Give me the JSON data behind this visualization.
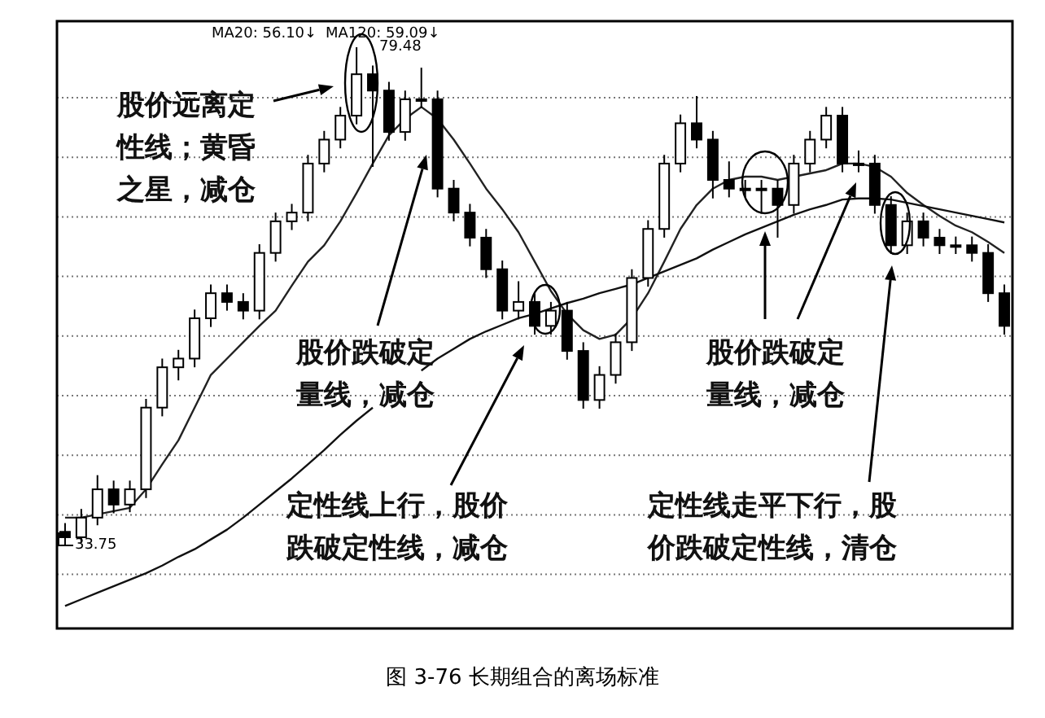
{
  "chart_data": {
    "type": "candlestick",
    "categories": [
      null,
      null,
      null,
      null,
      null,
      null,
      null,
      null,
      null,
      null,
      null,
      null,
      null,
      null,
      null,
      null,
      null,
      null,
      null,
      null,
      null,
      null,
      null,
      null,
      null,
      null,
      null,
      null,
      null,
      null,
      null,
      null,
      null,
      null,
      null,
      null,
      null,
      null,
      null,
      null,
      null,
      null,
      null,
      null,
      null,
      null,
      null,
      null,
      null,
      null,
      null,
      null,
      null,
      null,
      null,
      null,
      null,
      null,
      null
    ],
    "ohlc": [
      [
        35.0,
        35.8,
        33.75,
        34.5
      ],
      [
        34.5,
        37.1,
        34.0,
        36.3
      ],
      [
        36.3,
        40.2,
        35.6,
        38.9
      ],
      [
        38.9,
        39.7,
        36.7,
        37.5
      ],
      [
        37.5,
        39.7,
        36.8,
        38.9
      ],
      [
        38.9,
        47.2,
        38.1,
        46.4
      ],
      [
        46.4,
        50.9,
        45.6,
        50.1
      ],
      [
        50.1,
        51.7,
        48.9,
        50.9
      ],
      [
        50.9,
        55.4,
        50.1,
        54.6
      ],
      [
        54.6,
        57.7,
        53.8,
        56.9
      ],
      [
        56.9,
        57.7,
        55.3,
        56.1
      ],
      [
        56.1,
        56.9,
        54.5,
        55.3
      ],
      [
        55.3,
        61.4,
        54.5,
        60.6
      ],
      [
        60.6,
        64.3,
        59.8,
        63.5
      ],
      [
        63.5,
        65.1,
        62.7,
        64.3
      ],
      [
        64.3,
        69.6,
        63.5,
        68.8
      ],
      [
        68.8,
        71.8,
        68.0,
        71.0
      ],
      [
        71.0,
        74.0,
        70.2,
        73.2
      ],
      [
        73.2,
        79.48,
        72.4,
        77.0
      ],
      [
        77.0,
        77.8,
        68.5,
        75.5
      ],
      [
        75.5,
        76.3,
        70.9,
        71.7
      ],
      [
        71.7,
        75.5,
        70.9,
        74.7
      ],
      [
        74.7,
        77.6,
        73.9,
        74.7
      ],
      [
        74.7,
        75.5,
        65.7,
        66.5
      ],
      [
        66.5,
        67.3,
        63.5,
        64.3
      ],
      [
        64.3,
        65.1,
        61.2,
        62.0
      ],
      [
        62.0,
        62.8,
        58.3,
        59.1
      ],
      [
        59.1,
        59.9,
        54.5,
        55.3
      ],
      [
        55.3,
        58.0,
        54.5,
        56.1
      ],
      [
        56.1,
        56.9,
        53.1,
        53.9
      ],
      [
        53.9,
        56.1,
        53.1,
        55.3
      ],
      [
        55.3,
        56.1,
        50.8,
        51.6
      ],
      [
        51.6,
        52.4,
        46.3,
        47.1
      ],
      [
        47.1,
        50.2,
        46.3,
        49.4
      ],
      [
        49.4,
        53.2,
        48.6,
        52.4
      ],
      [
        52.4,
        59.1,
        51.6,
        58.3
      ],
      [
        58.3,
        63.6,
        57.5,
        62.8
      ],
      [
        62.8,
        69.6,
        62.0,
        68.8
      ],
      [
        68.8,
        73.3,
        68.0,
        72.5
      ],
      [
        72.5,
        75.0,
        70.2,
        71.0
      ],
      [
        71.0,
        71.8,
        65.6,
        67.3
      ],
      [
        67.3,
        69.0,
        65.7,
        66.5
      ],
      [
        66.5,
        67.3,
        65.7,
        66.5
      ],
      [
        66.5,
        67.3,
        64.2,
        66.5
      ],
      [
        66.5,
        67.3,
        62.0,
        65.0
      ],
      [
        65.0,
        69.6,
        64.2,
        68.8
      ],
      [
        68.8,
        71.8,
        68.0,
        71.0
      ],
      [
        71.0,
        74.0,
        70.2,
        73.2
      ],
      [
        73.2,
        74.0,
        68.0,
        68.8
      ],
      [
        68.8,
        70.0,
        68.0,
        68.8
      ],
      [
        68.8,
        69.6,
        64.2,
        65.0
      ],
      [
        65.0,
        65.8,
        60.5,
        61.3
      ],
      [
        61.3,
        64.3,
        60.5,
        63.5
      ],
      [
        63.5,
        64.3,
        61.2,
        62.0
      ],
      [
        62.0,
        62.8,
        60.5,
        61.3
      ],
      [
        61.3,
        62.1,
        60.5,
        61.3
      ],
      [
        61.3,
        62.1,
        59.8,
        60.6
      ],
      [
        60.6,
        61.4,
        56.1,
        56.9
      ],
      [
        56.9,
        57.7,
        53.1,
        53.9
      ]
    ],
    "series": [
      {
        "type": "line",
        "color": "#222222",
        "values": [
          36.3,
          36.3,
          36.6,
          36.9,
          37.2,
          38.9,
          41.2,
          43.4,
          46.4,
          49.4,
          50.9,
          52.4,
          53.9,
          55.3,
          57.6,
          59.8,
          61.3,
          63.5,
          66.1,
          68.8,
          71.4,
          72.9,
          74.0,
          72.9,
          71.0,
          68.8,
          66.5,
          64.6,
          62.5,
          59.8,
          57.1,
          55.0,
          53.5,
          52.7,
          53.1,
          54.6,
          56.9,
          59.8,
          62.8,
          65.0,
          66.5,
          67.3,
          67.6,
          67.6,
          67.3,
          67.6,
          67.9,
          68.2,
          68.8,
          68.8,
          68.5,
          67.6,
          66.1,
          65.0,
          64.0,
          63.1,
          62.5,
          61.6,
          60.6
        ]
      },
      {
        "type": "line",
        "color": "#111111",
        "values": [
          28.2,
          28.8,
          29.4,
          30.0,
          30.6,
          31.2,
          31.9,
          32.7,
          33.4,
          34.3,
          35.2,
          36.3,
          37.5,
          38.7,
          39.9,
          41.2,
          42.5,
          43.9,
          45.2,
          46.4,
          null,
          null,
          49.8,
          50.9,
          51.8,
          52.7,
          53.4,
          54.0,
          54.6,
          55.0,
          55.5,
          56.0,
          56.4,
          56.9,
          57.3,
          57.7,
          58.3,
          58.9,
          59.5,
          60.1,
          60.9,
          61.6,
          62.3,
          62.9,
          63.5,
          64.1,
          64.6,
          65.0,
          65.5,
          65.6,
          65.6,
          65.5,
          65.2,
          64.9,
          64.6,
          64.3,
          64.0,
          63.7,
          63.4
        ]
      }
    ],
    "grid": "y",
    "annotations": [
      "MA20: 56.10↓",
      "MA120: 59.09↓",
      "79.48",
      "33.75",
      "股价远离定性线；黄昏之星，减仓",
      "股价跌破定量线，减仓",
      "定性线上行，股价跌破定性线，减仓",
      "股价跌破定量线，减仓",
      "定性线走平下行，股价跌破定性线，清仓",
      "图 3-76   长期组合的离场标准"
    ]
  }
}
